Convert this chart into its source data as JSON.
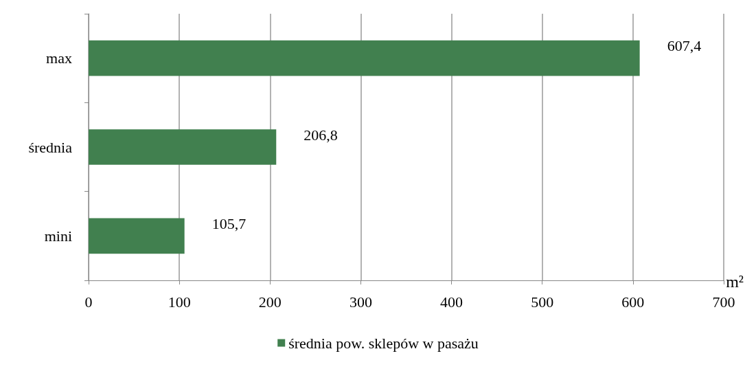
{
  "chart_data": {
    "type": "bar",
    "orientation": "horizontal",
    "categories": [
      "max",
      "średnia",
      "mini"
    ],
    "xlabel": "m²",
    "series": [
      {
        "name": "średnia pow. sklepów w pasażu",
        "color": "#41804f",
        "values": [
          607.4,
          206.8,
          105.7
        ],
        "value_labels": [
          "607,4",
          "206,8",
          "105,7"
        ]
      }
    ],
    "xlim": [
      0,
      700
    ],
    "xticks": [
      0,
      100,
      200,
      300,
      400,
      500,
      600,
      700
    ],
    "grid": "x",
    "legend": "bottom"
  }
}
